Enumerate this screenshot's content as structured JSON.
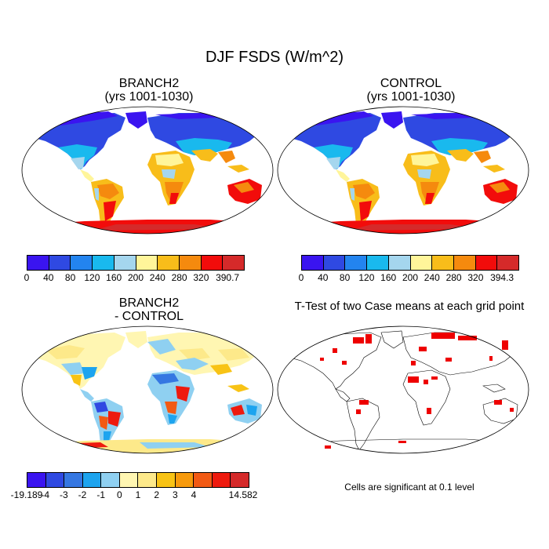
{
  "figure_title": "DJF FSDS (W/m^2)",
  "panels": {
    "branch": {
      "title_line1": "BRANCH2",
      "title_line2": "(yrs 1001-1030)"
    },
    "control": {
      "title_line1": "CONTROL",
      "title_line2": "(yrs 1001-1030)"
    },
    "diff": {
      "title_line1": "BRANCH2",
      "title_line2": "- CONTROL"
    },
    "ttest": {
      "title": "T-Test of two Case means at each grid point",
      "note": "Cells are significant at 0.1 level"
    }
  },
  "colorbars": {
    "branch": {
      "colors": [
        "#3a14f0",
        "#2f49e2",
        "#2384ef",
        "#19b9ee",
        "#a5d6ee",
        "#fff59a",
        "#f8bd1a",
        "#f58a0e",
        "#f20c0b",
        "#d52a2a"
      ],
      "labels": [
        "0",
        "40",
        "80",
        "120",
        "160",
        "200",
        "240",
        "280",
        "320",
        "390.7"
      ]
    },
    "control": {
      "colors": [
        "#3a14f0",
        "#2f49e2",
        "#2384ef",
        "#19b9ee",
        "#a5d6ee",
        "#fff59a",
        "#f8bd1a",
        "#f58a0e",
        "#f20c0b",
        "#d52a2a"
      ],
      "labels": [
        "0",
        "40",
        "80",
        "120",
        "160",
        "200",
        "240",
        "280",
        "320",
        "394.3"
      ]
    },
    "diff": {
      "colors": [
        "#3a14f0",
        "#2f49e2",
        "#3577e2",
        "#1da4ef",
        "#8fd0f1",
        "#fff6b2",
        "#fde98a",
        "#f8c315",
        "#f79a0c",
        "#f25a14",
        "#ee1a0e",
        "#d52a2a"
      ],
      "labels": [
        "-19.189",
        "-4",
        "-3",
        "-2",
        "-1",
        "0",
        "1",
        "2",
        "3",
        "4",
        "14.582"
      ]
    }
  },
  "chart_data": [
    {
      "type": "map",
      "title": "BRANCH2 (yrs 1001-1030)",
      "variable": "DJF FSDS",
      "units": "W/m^2",
      "range": [
        0,
        390.7
      ],
      "levels": [
        0,
        40,
        80,
        120,
        160,
        200,
        240,
        280,
        320,
        390.7
      ]
    },
    {
      "type": "map",
      "title": "CONTROL (yrs 1001-1030)",
      "variable": "DJF FSDS",
      "units": "W/m^2",
      "range": [
        0,
        394.3
      ],
      "levels": [
        0,
        40,
        80,
        120,
        160,
        200,
        240,
        280,
        320,
        394.3
      ]
    },
    {
      "type": "map",
      "title": "BRANCH2 - CONTROL",
      "variable": "DJF FSDS difference",
      "units": "W/m^2",
      "range": [
        -19.189,
        14.582
      ],
      "levels": [
        -19.189,
        -4,
        -3,
        -2,
        -1,
        0,
        1,
        2,
        3,
        4,
        14.582
      ]
    },
    {
      "type": "map",
      "title": "T-Test of two Case means at each grid point",
      "significance_level": 0.1
    }
  ]
}
